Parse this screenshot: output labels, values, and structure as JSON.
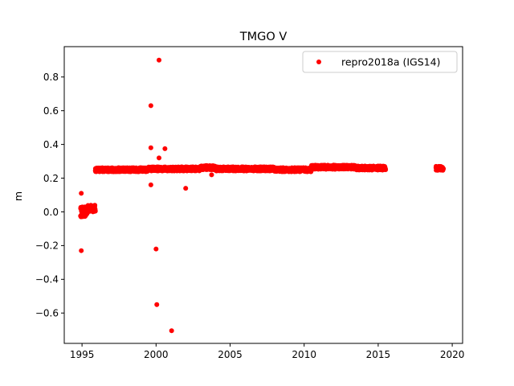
{
  "chart_data": {
    "type": "scatter",
    "title": "TMGO V",
    "xlabel": "",
    "ylabel": "m",
    "xlim": [
      1993.8,
      2020.7
    ],
    "ylim": [
      -0.78,
      0.98
    ],
    "x_ticks": [
      1995,
      2000,
      2005,
      2010,
      2015,
      2020
    ],
    "x_tick_labels": [
      "1995",
      "2000",
      "2005",
      "2010",
      "2015",
      "2020"
    ],
    "y_ticks": [
      -0.6,
      -0.4,
      -0.2,
      0.0,
      0.2,
      0.4,
      0.6,
      0.8
    ],
    "y_tick_labels": [
      "−0.6",
      "−0.4",
      "−0.2",
      "0.0",
      "0.2",
      "0.4",
      "0.6",
      "0.8"
    ],
    "grid": false,
    "legend_position": "top-right",
    "series": [
      {
        "name": "repro2018a (IGS14)",
        "color": "#ff0000",
        "marker": "circle",
        "segments": [
          {
            "x_start": 1994.9,
            "x_end": 1995.35,
            "y_center": 0.0,
            "y_spread": 0.03
          },
          {
            "x_start": 1995.35,
            "x_end": 1995.9,
            "y_center": 0.02,
            "y_spread": 0.02
          },
          {
            "x_start": 1995.9,
            "x_end": 1999.5,
            "y_center": 0.25,
            "y_spread": 0.012
          },
          {
            "x_start": 1999.5,
            "x_end": 2003.0,
            "y_center": 0.255,
            "y_spread": 0.012
          },
          {
            "x_start": 2003.0,
            "x_end": 2004.0,
            "y_center": 0.262,
            "y_spread": 0.012
          },
          {
            "x_start": 2004.0,
            "x_end": 2008.0,
            "y_center": 0.255,
            "y_spread": 0.012
          },
          {
            "x_start": 2008.0,
            "x_end": 2010.5,
            "y_center": 0.25,
            "y_spread": 0.012
          },
          {
            "x_start": 2010.5,
            "x_end": 2013.5,
            "y_center": 0.265,
            "y_spread": 0.012
          },
          {
            "x_start": 2013.5,
            "x_end": 2015.5,
            "y_center": 0.26,
            "y_spread": 0.012
          },
          {
            "x_start": 2018.9,
            "x_end": 2019.4,
            "y_center": 0.258,
            "y_spread": 0.012
          }
        ],
        "outliers": [
          {
            "x": 1994.95,
            "y": 0.11
          },
          {
            "x": 1994.95,
            "y": -0.23
          },
          {
            "x": 1999.65,
            "y": 0.63
          },
          {
            "x": 1999.65,
            "y": 0.38
          },
          {
            "x": 1999.65,
            "y": 0.16
          },
          {
            "x": 2000.0,
            "y": -0.22
          },
          {
            "x": 2000.05,
            "y": -0.55
          },
          {
            "x": 2000.2,
            "y": 0.9
          },
          {
            "x": 2000.2,
            "y": 0.32
          },
          {
            "x": 2000.6,
            "y": 0.375
          },
          {
            "x": 2001.05,
            "y": -0.705
          },
          {
            "x": 2002.0,
            "y": 0.14
          },
          {
            "x": 2003.75,
            "y": 0.22
          }
        ]
      }
    ]
  }
}
